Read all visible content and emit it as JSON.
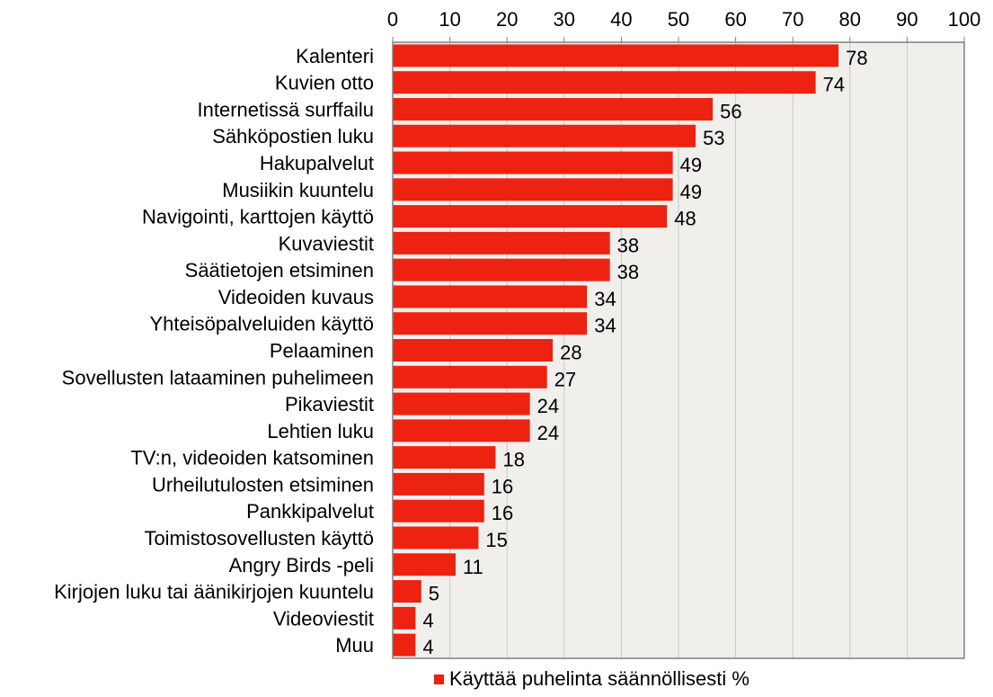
{
  "chart_data": {
    "type": "bar",
    "orientation": "horizontal",
    "categories": [
      "Kalenteri",
      "Kuvien otto",
      "Internetissä surffailu",
      "Sähköpostien luku",
      "Hakupalvelut",
      "Musiikin kuuntelu",
      "Navigointi, karttojen käyttö",
      "Kuvaviestit",
      "Säätietojen etsiminen",
      "Videoiden kuvaus",
      "Yhteisöpalveluiden käyttö",
      "Pelaaminen",
      "Sovellusten lataaminen puhelimeen",
      "Pikaviestit",
      "Lehtien luku",
      "TV:n, videoiden katsominen",
      "Urheilutulosten etsiminen",
      "Pankkipalvelut",
      "Toimistosovellusten käyttö",
      "Angry Birds -peli",
      "Kirjojen luku tai äänikirjojen kuuntelu",
      "Videoviestit",
      "Muu"
    ],
    "series": [
      {
        "name": "Käyttää puhelinta säännöllisesti %",
        "values": [
          78,
          74,
          56,
          53,
          49,
          49,
          48,
          38,
          38,
          34,
          34,
          28,
          27,
          24,
          24,
          18,
          16,
          16,
          15,
          11,
          5,
          4,
          4
        ]
      }
    ],
    "xlim": [
      0,
      100
    ],
    "xticks": [
      0,
      10,
      20,
      30,
      40,
      50,
      60,
      70,
      80,
      90,
      100
    ],
    "axis_position": "top",
    "grid": true,
    "legend_position": "bottom",
    "title": "",
    "xlabel": "",
    "ylabel": ""
  },
  "colors": {
    "bar": "#ee2211",
    "plot_background": "#f1efec",
    "gridline": "#c8c8c8",
    "axis": "#808080"
  }
}
